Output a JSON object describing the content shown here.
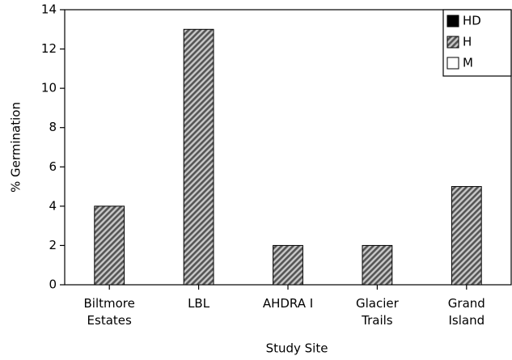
{
  "chart_data": {
    "type": "bar",
    "xlabel": "Study Site",
    "ylabel": "% Germination",
    "categories": [
      "Biltmore\nEstates",
      "LBL",
      "AHDRA I",
      "Glacier\nTrails",
      "Grand\nIsland"
    ],
    "series": [
      {
        "name": "HD",
        "color": "#000000",
        "values": [
          0,
          0,
          0,
          0,
          0
        ]
      },
      {
        "name": "H",
        "color": "#7a7a7a",
        "hatch": true,
        "values": [
          4,
          13,
          2,
          2,
          5
        ]
      },
      {
        "name": "M",
        "color": "#ffffff",
        "values": [
          0,
          0,
          0,
          0,
          0
        ]
      }
    ],
    "ylim": [
      0,
      14
    ],
    "yticks": [
      0,
      2,
      4,
      6,
      8,
      10,
      12,
      14
    ],
    "legend": "top-right"
  }
}
